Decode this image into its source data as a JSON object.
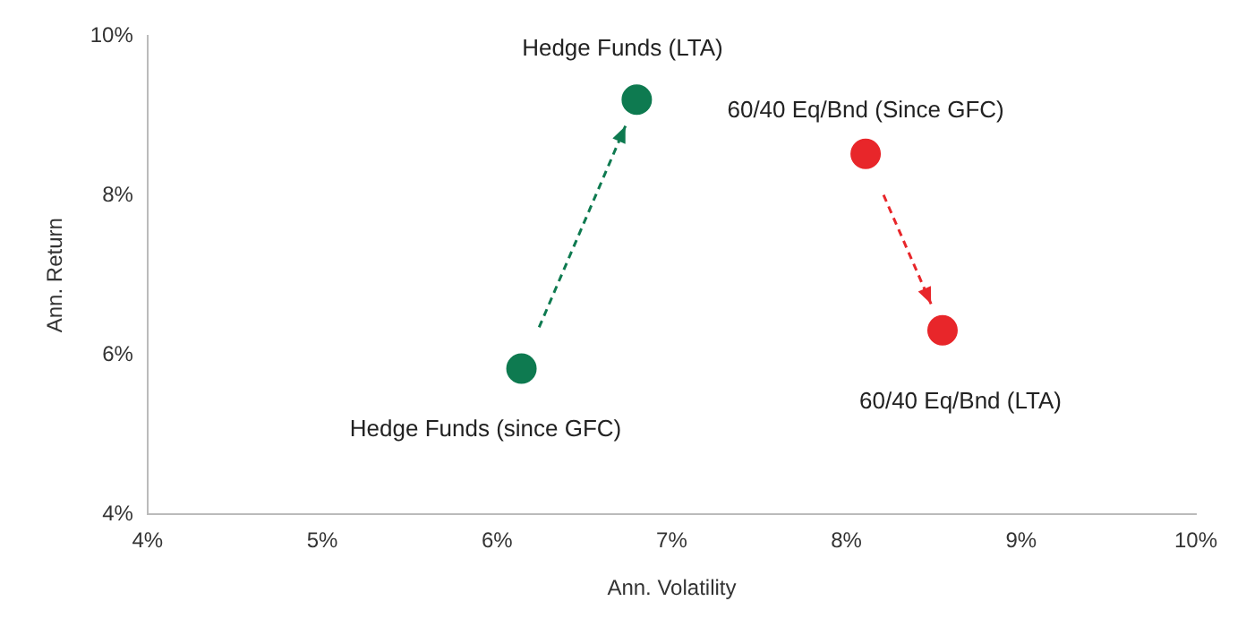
{
  "chart_data": {
    "type": "scatter",
    "xlabel": "Ann. Volatility",
    "ylabel": "Ann. Return",
    "xlim": [
      4,
      10
    ],
    "xticks": [
      {
        "value": 4,
        "label": "4%"
      },
      {
        "value": 5,
        "label": "5%"
      },
      {
        "value": 6,
        "label": "6%"
      },
      {
        "value": 7,
        "label": "7%"
      },
      {
        "value": 8,
        "label": "8%"
      },
      {
        "value": 9,
        "label": "9%"
      },
      {
        "value": 10,
        "label": "10%"
      }
    ],
    "ylim": [
      4,
      10
    ],
    "yticks": [
      {
        "value": 4,
        "label": "4%"
      },
      {
        "value": 6,
        "label": "6%"
      },
      {
        "value": 8,
        "label": "8%"
      },
      {
        "value": 10,
        "label": "10%"
      }
    ],
    "series": [
      {
        "color": "#0e7a50",
        "x": [
          6.14,
          6.8
        ],
        "values": [
          5.83,
          9.2
        ]
      },
      {
        "color": "#e8262a",
        "x": [
          8.11,
          8.55
        ],
        "values": [
          8.52,
          6.31
        ]
      }
    ],
    "annotations": [
      {
        "text": "Hedge Funds (since GFC)",
        "x": 6.14,
        "y": 5.83
      },
      {
        "text": "Hedge Funds (LTA)",
        "x": 6.8,
        "y": 9.2
      },
      {
        "text": "60/40 Eq/Bnd (Since GFC)",
        "x": 8.11,
        "y": 8.52
      },
      {
        "text": "60/40 Eq/Bnd (LTA)",
        "x": 8.55,
        "y": 6.31
      }
    ],
    "grid": false,
    "legend": false,
    "marker": "circle"
  }
}
